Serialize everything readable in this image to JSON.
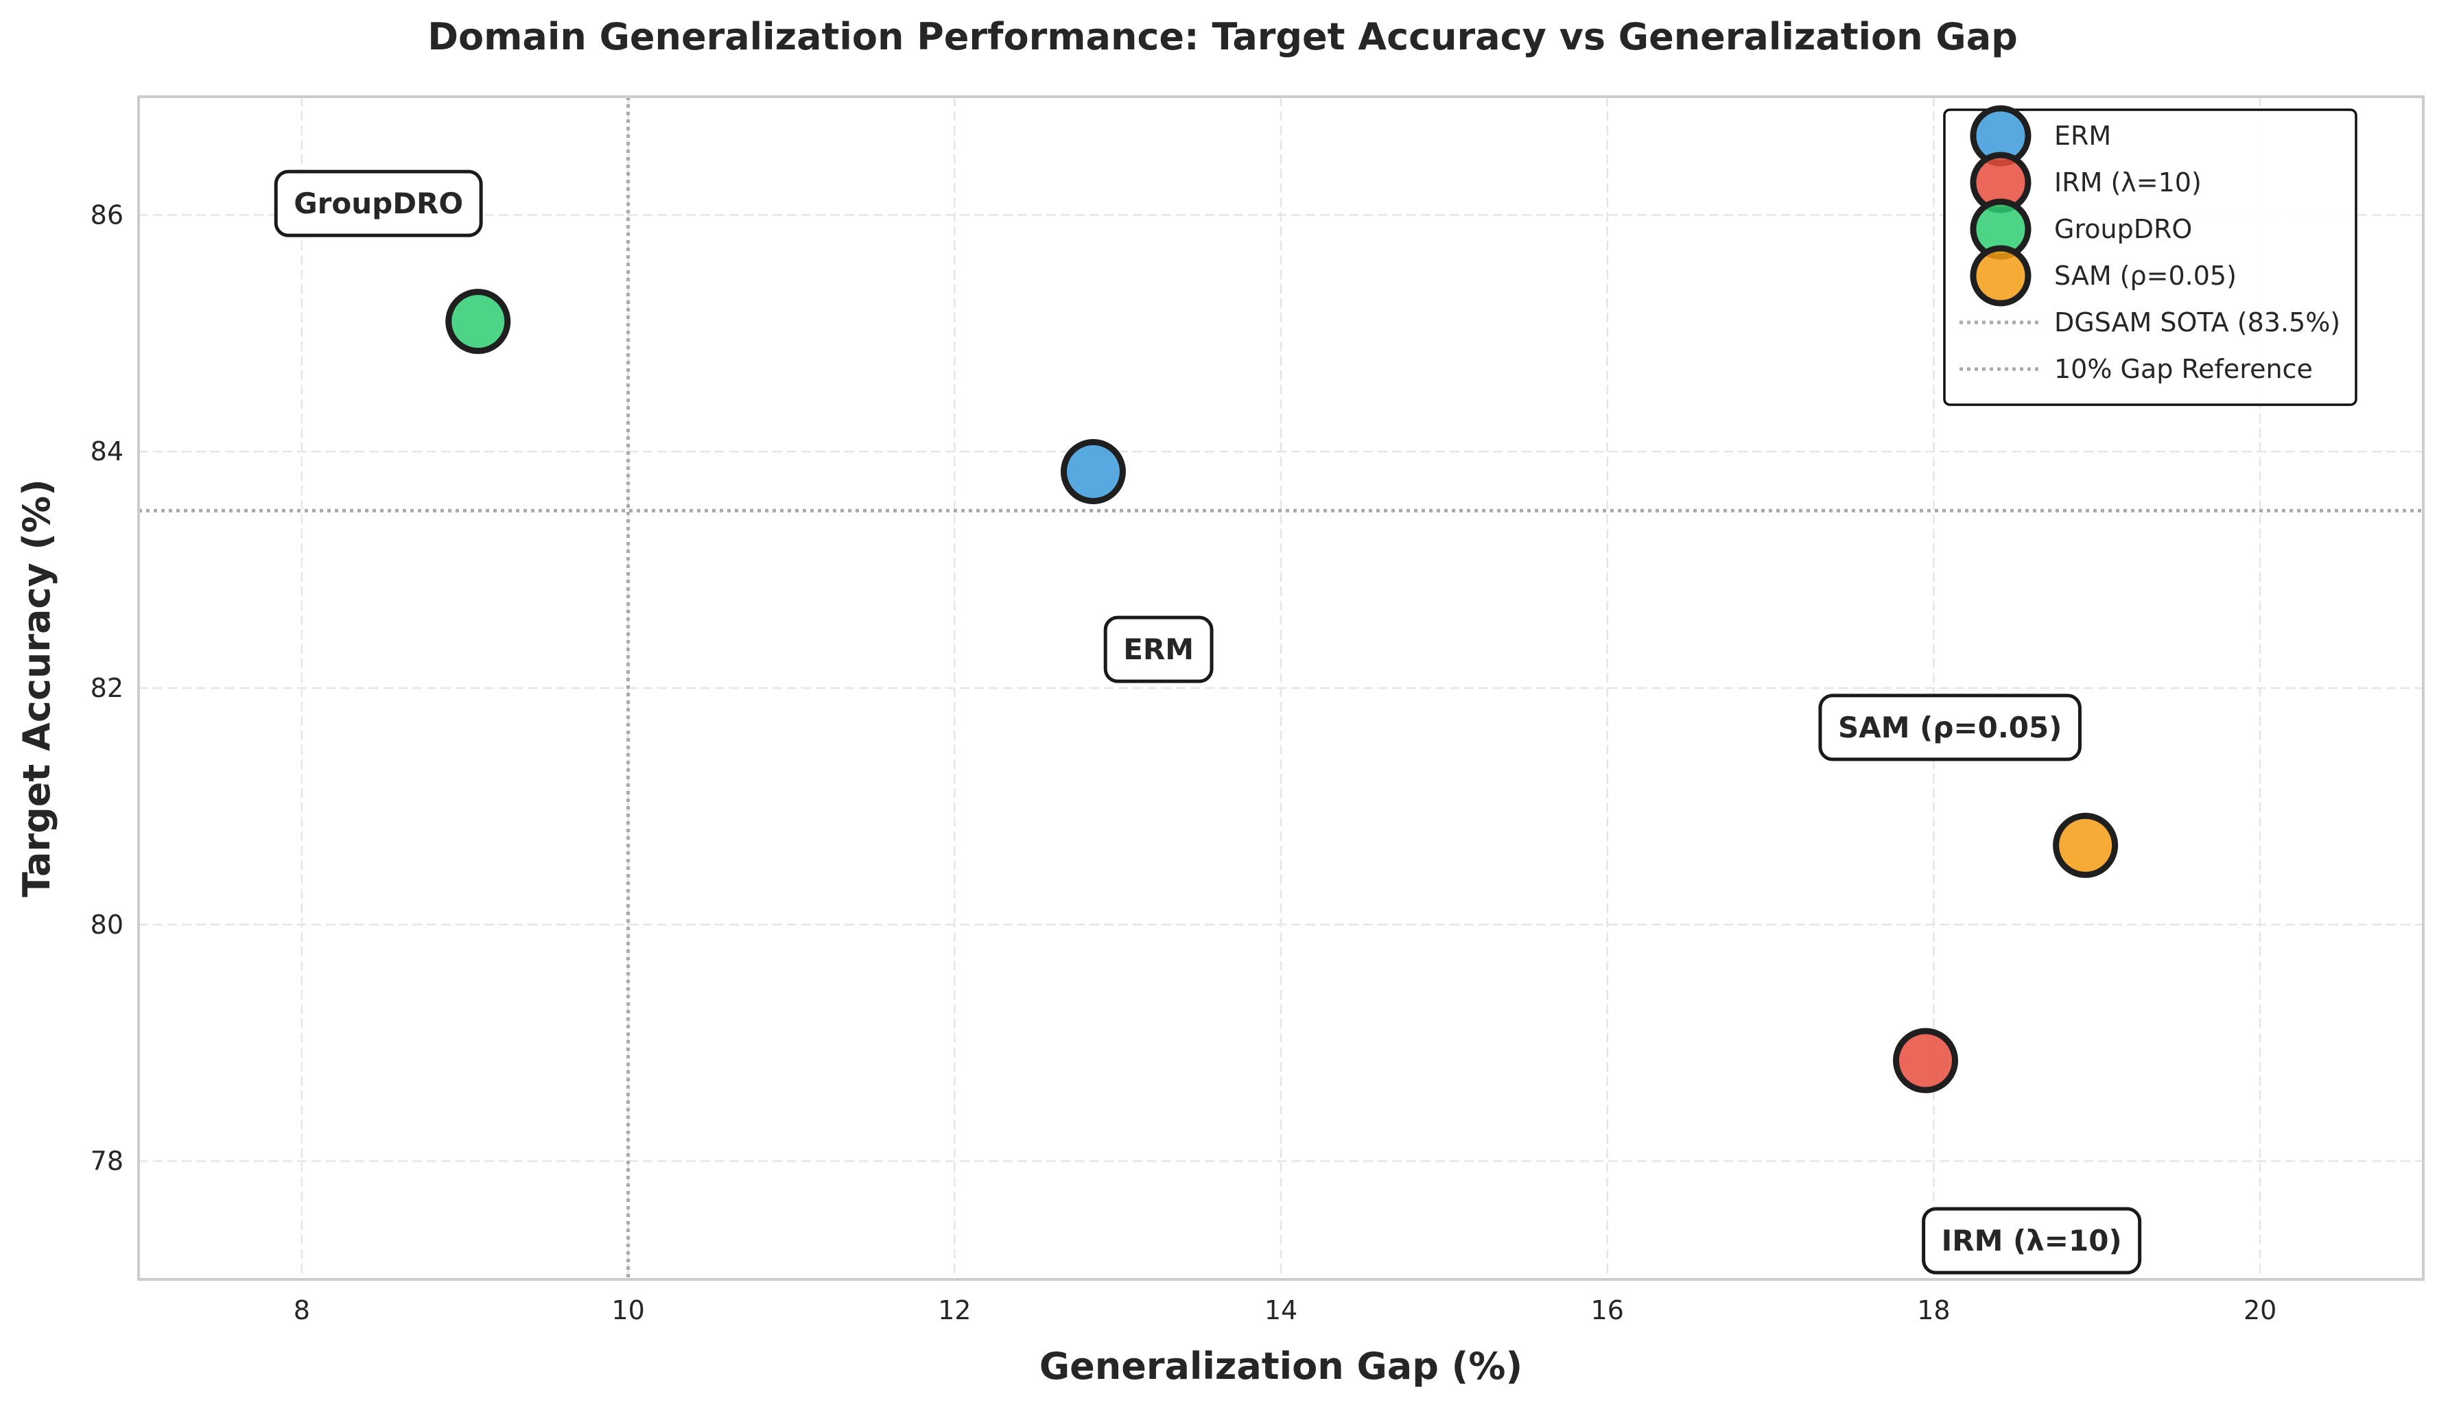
{
  "chart_data": {
    "type": "scatter",
    "title": "Domain Generalization Performance: Target Accuracy vs Generalization Gap",
    "xlabel": "Generalization Gap (%)",
    "ylabel": "Target Accuracy (%)",
    "xlim": [
      7,
      21
    ],
    "ylim": [
      77,
      87
    ],
    "xticks": [
      8,
      10,
      12,
      14,
      16,
      18,
      20
    ],
    "yticks": [
      78,
      80,
      82,
      84,
      86
    ],
    "grid": true,
    "legend_position": "top-right",
    "series": [
      {
        "name": "ERM",
        "x": 12.85,
        "y": 83.83,
        "color": "#3a9ad9",
        "annotation": "ERM",
        "annotation_xy": [
          13.25,
          82.33
        ]
      },
      {
        "name": "IRM (λ=10)",
        "x": 17.95,
        "y": 78.85,
        "color": "#e74c3c",
        "annotation": "IRM (λ=10)",
        "annotation_xy": [
          18.6,
          77.33
        ]
      },
      {
        "name": "GroupDRO",
        "x": 9.08,
        "y": 85.1,
        "color": "#2ecc71",
        "annotation": "GroupDRO",
        "annotation_xy": [
          8.47,
          86.1
        ]
      },
      {
        "name": "SAM (ρ=0.05)",
        "x": 18.93,
        "y": 80.67,
        "color": "#f39c12",
        "annotation": "SAM (ρ=0.05)",
        "annotation_xy": [
          18.1,
          81.67
        ]
      }
    ],
    "reference_lines": [
      {
        "name": "DGSAM SOTA (83.5%)",
        "orientation": "horizontal",
        "value": 83.5
      },
      {
        "name": "10% Gap Reference",
        "orientation": "vertical",
        "value": 10
      }
    ]
  }
}
